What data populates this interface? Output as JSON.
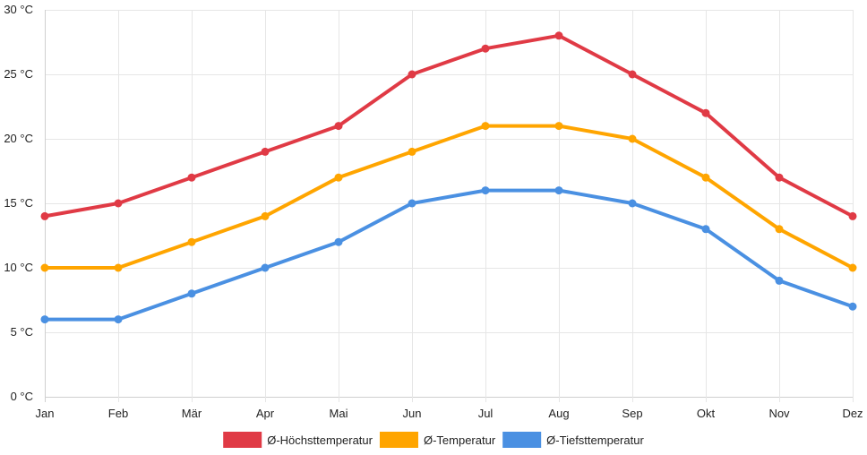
{
  "chart_data": {
    "type": "line",
    "categories": [
      "Jan",
      "Feb",
      "Mär",
      "Apr",
      "Mai",
      "Jun",
      "Jul",
      "Aug",
      "Sep",
      "Okt",
      "Nov",
      "Dez"
    ],
    "series": [
      {
        "name": "Ø-Höchsttemperatur",
        "color": "#e03a45",
        "values": [
          14,
          15,
          17,
          19,
          21,
          25,
          27,
          28,
          25,
          22,
          17,
          14
        ]
      },
      {
        "name": "Ø-Temperatur",
        "color": "#ffa500",
        "values": [
          10,
          10,
          12,
          14,
          17,
          19,
          21,
          21,
          20,
          17,
          13,
          10
        ]
      },
      {
        "name": "Ø-Tiefsttemperatur",
        "color": "#4a90e2",
        "values": [
          6,
          6,
          8,
          10,
          12,
          15,
          16,
          16,
          15,
          13,
          9,
          7
        ]
      }
    ],
    "ylim": [
      0,
      30
    ],
    "yticks": [
      0,
      5,
      10,
      15,
      20,
      25,
      30
    ],
    "y_tick_labels": [
      "0 °C",
      "5 °C",
      "10 °C",
      "15 °C",
      "20 °C",
      "25 °C",
      "30 °C"
    ],
    "grid": true,
    "legend_position": "bottom",
    "title": "",
    "xlabel": "",
    "ylabel": ""
  }
}
